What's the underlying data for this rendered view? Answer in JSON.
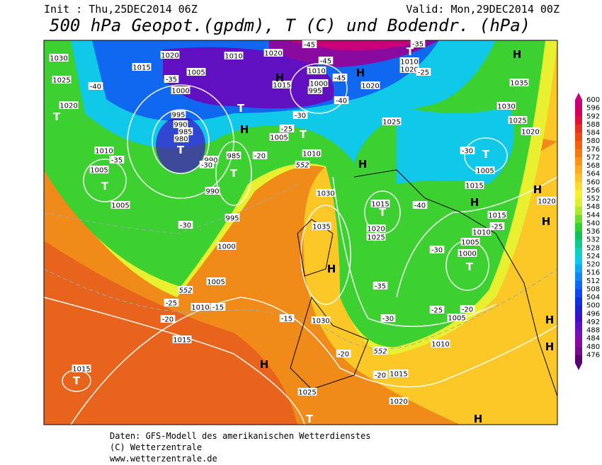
{
  "header": {
    "init": "Init : Thu,25DEC2014 06Z",
    "valid": "Valid: Mon,29DEC2014 00Z",
    "title": "500 hPa Geopot.(gpdm), T (C) und Bodendr. (hPa)"
  },
  "colorbar": {
    "levels": [
      600,
      596,
      592,
      588,
      584,
      580,
      576,
      572,
      568,
      564,
      560,
      556,
      552,
      548,
      544,
      540,
      536,
      532,
      528,
      524,
      520,
      516,
      512,
      508,
      504,
      500,
      496,
      492,
      488,
      484,
      480,
      476
    ],
    "colors": [
      "#c8007a",
      "#d4005a",
      "#e0103c",
      "#e83020",
      "#ec4a10",
      "#f06010",
      "#f47a10",
      "#f89418",
      "#fcac20",
      "#fcc428",
      "#fcdc30",
      "#f8f030",
      "#e0f030",
      "#b0e830",
      "#70dc30",
      "#30d030",
      "#10c060",
      "#10c890",
      "#10d0c0",
      "#10c8e8",
      "#10a8f0",
      "#1088f0",
      "#1068f0",
      "#1048f0",
      "#1030e0",
      "#2020d0",
      "#4010c8",
      "#6010c0",
      "#7a10b0",
      "#8a0aa0",
      "#7a0890",
      "#5a0070"
    ]
  },
  "map_labels": [
    "1030",
    "1025",
    "1020",
    "T",
    "-40",
    "1020",
    "1015",
    "1005",
    "-35",
    "1000",
    "995",
    "990",
    "985",
    "980",
    "T",
    "990",
    "-30",
    "985",
    "T",
    "990",
    "995",
    "1000",
    "-30",
    "1010",
    "-35",
    "1005",
    "T",
    "1005",
    "1010",
    "1020",
    "-45",
    "-45",
    "1010",
    "1000",
    "995",
    "1015",
    "H",
    "H",
    "-45",
    "1020",
    "-40",
    "-30",
    "T",
    "1005",
    "H",
    "T",
    "-25",
    "1010",
    "552",
    "-20",
    "1030",
    "1035",
    "H",
    "H",
    "1025",
    "1015",
    "T",
    "1020",
    "1025",
    "-40",
    "-35",
    "-30",
    "1010",
    "1005",
    "-25",
    "-20",
    "1000",
    "T",
    "1005",
    "1010",
    "1015",
    "-25",
    "-30",
    "H",
    "1015",
    "T",
    "-30",
    "1005",
    "1030",
    "1025",
    "1020",
    "1035",
    "H",
    "T",
    "1010",
    "1020",
    "-25",
    "-35",
    "H",
    "1020",
    "H",
    "H",
    "H",
    "552",
    "-25",
    "1010",
    "-15",
    "-20",
    "1005",
    "1015",
    "-15",
    "1030",
    "H",
    "-20",
    "552",
    "-20",
    "1015",
    "1020",
    "1025",
    "T",
    "H",
    "1015",
    "T"
  ],
  "footer": {
    "line1": "Daten: GFS-Modell des amerikanischen Wetterdienstes",
    "line2": "(C) Wetterzentrale",
    "line3": "www.wetterzentrale.de"
  }
}
